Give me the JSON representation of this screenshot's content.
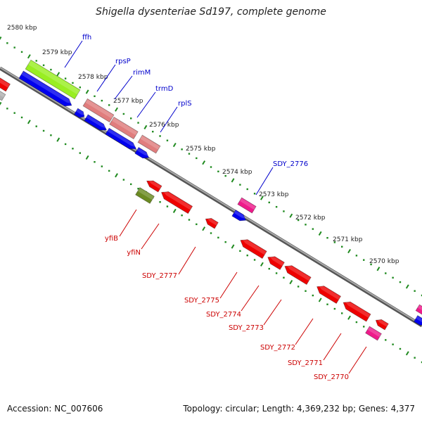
{
  "title": "Shigella dysenteriae Sd197, complete genome",
  "footer": {
    "accession": "Accession: NC_007606",
    "topology": "Topology: circular; Length: 4,369,232 bp; Genes: 4,377"
  },
  "colors": {
    "backbone": "#808080",
    "tick": "#1f8a1f",
    "forward_cds": "#0000ee",
    "reverse_cds": "#ee0000",
    "pseudo_pink": "#ee1a8a",
    "rrna_like": "#e07d7d",
    "lime": "#99ee22",
    "olive": "#6b8a22"
  },
  "kbp_labels": [
    "2580 kbp",
    "2579 kbp",
    "2578 kbp",
    "2577 kbp",
    "2576 kbp",
    "2575 kbp",
    "2574 kbp",
    "2573 kbp",
    "2572 kbp",
    "2571 kbp",
    "2570 kbp"
  ],
  "genes_top": [
    {
      "label": "ffh",
      "color": "#0000cc"
    },
    {
      "label": "rpsP",
      "color": "#0000cc"
    },
    {
      "label": "rimM",
      "color": "#0000cc"
    },
    {
      "label": "trmD",
      "color": "#0000cc"
    },
    {
      "label": "rplS",
      "color": "#0000cc"
    },
    {
      "label": "SDY_2776",
      "color": "#0000cc"
    }
  ],
  "genes_bottom": [
    {
      "label": "yfiB",
      "color": "#cc0000"
    },
    {
      "label": "yfiN",
      "color": "#cc0000"
    },
    {
      "label": "SDY_2777",
      "color": "#cc0000"
    },
    {
      "label": "SDY_2775",
      "color": "#cc0000"
    },
    {
      "label": "SDY_2774",
      "color": "#cc0000"
    },
    {
      "label": "SDY_2773",
      "color": "#cc0000"
    },
    {
      "label": "SDY_2772",
      "color": "#cc0000"
    },
    {
      "label": "SDY_2771",
      "color": "#cc0000"
    },
    {
      "label": "SDY_2770",
      "color": "#cc0000"
    }
  ]
}
